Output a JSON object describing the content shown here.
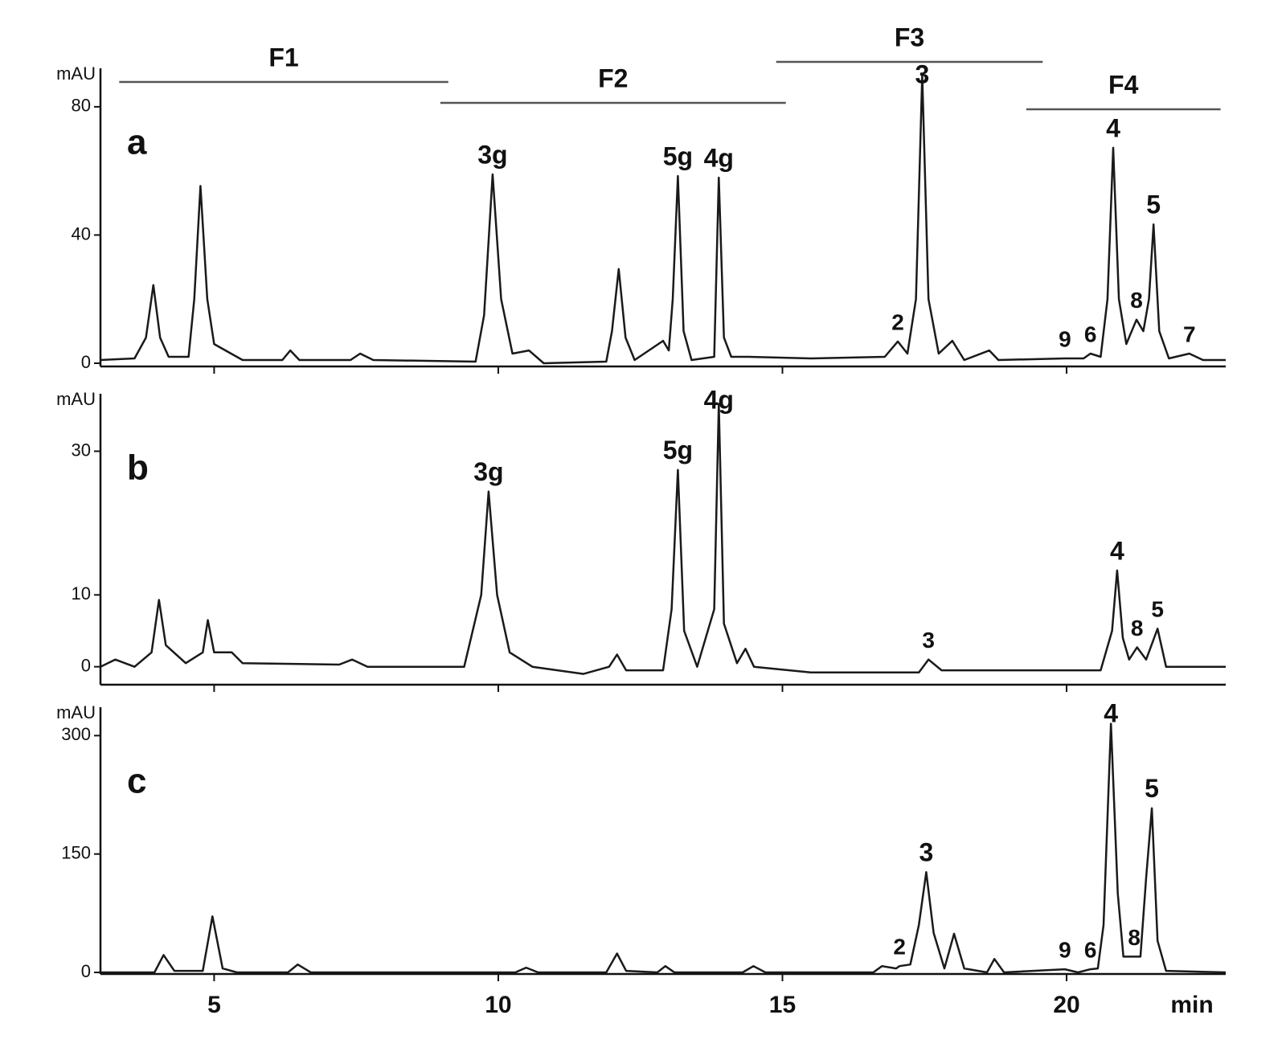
{
  "chart_data": [
    {
      "type": "line",
      "panel_label": "a",
      "y_label": "mAU",
      "color": "#1a1a1a",
      "xlim": [
        3,
        22.8
      ],
      "ylim": [
        -1,
        92
      ],
      "yticks": [
        0,
        40,
        80
      ],
      "xticks": [
        5,
        10,
        15,
        20
      ],
      "fractions": [
        {
          "label": "F1",
          "x": [
            3.33,
            9.12
          ]
        },
        {
          "label": "F2",
          "x": [
            8.98,
            15.06
          ]
        },
        {
          "label": "F3",
          "x": [
            14.89,
            19.58
          ]
        },
        {
          "label": "F4",
          "x": [
            19.29,
            22.71
          ]
        }
      ],
      "x": [
        3.0,
        3.6,
        3.8,
        3.93,
        4.05,
        4.2,
        4.55,
        4.65,
        4.76,
        4.88,
        5.0,
        5.2,
        5.5,
        6.2,
        6.34,
        6.5,
        7.4,
        7.57,
        7.8,
        9.6,
        9.75,
        9.9,
        10.05,
        10.25,
        10.54,
        10.8,
        11.9,
        12.0,
        12.12,
        12.24,
        12.4,
        12.9,
        13.0,
        13.07,
        13.16,
        13.26,
        13.4,
        13.8,
        13.88,
        13.97,
        14.1,
        14.4,
        15.5,
        16.8,
        17.03,
        17.2,
        17.35,
        17.46,
        17.57,
        17.75,
        17.99,
        18.2,
        18.64,
        18.8,
        19.97,
        20.3,
        20.42,
        20.6,
        20.72,
        20.82,
        20.92,
        21.05,
        21.23,
        21.35,
        21.45,
        21.53,
        21.63,
        21.8,
        22.16,
        22.4,
        22.8
      ],
      "values": [
        1,
        1.5,
        8,
        24.4,
        8,
        2,
        2,
        20,
        55.3,
        20,
        6,
        4,
        1,
        1,
        4,
        1,
        1,
        3,
        1,
        0.5,
        15,
        58.9,
        20,
        3,
        4,
        0,
        0.5,
        10,
        29.4,
        8,
        1,
        7,
        4,
        20,
        58.4,
        10,
        1,
        2,
        57.9,
        8,
        2,
        2,
        1.5,
        2,
        6.8,
        3,
        20,
        89.8,
        20,
        3,
        7,
        1,
        4,
        1,
        1.5,
        1.5,
        3,
        2,
        20,
        67.2,
        20,
        6,
        13.6,
        10,
        20,
        43.3,
        10,
        1.5,
        3,
        1,
        1
      ],
      "annotations": [
        {
          "text": "3g",
          "x": 9.9
        },
        {
          "text": "5g",
          "x": 13.16
        },
        {
          "text": "4g",
          "x": 13.88
        },
        {
          "text": "2",
          "x": 17.03
        },
        {
          "text": "3",
          "x": 17.46
        },
        {
          "text": "9",
          "x": 19.97
        },
        {
          "text": "6",
          "x": 20.42
        },
        {
          "text": "4",
          "x": 20.82
        },
        {
          "text": "8",
          "x": 21.23
        },
        {
          "text": "5",
          "x": 21.53
        },
        {
          "text": "7",
          "x": 22.16
        }
      ]
    },
    {
      "type": "line",
      "panel_label": "b",
      "y_label": "mAU",
      "color": "#1a1a1a",
      "xlim": [
        3,
        22.8
      ],
      "ylim": [
        -2.5,
        38
      ],
      "yticks": [
        0,
        10,
        30
      ],
      "xticks": [
        5,
        10,
        15,
        20
      ],
      "x": [
        3.0,
        3.26,
        3.6,
        3.9,
        4.03,
        4.15,
        4.5,
        4.8,
        4.89,
        5.0,
        5.31,
        5.5,
        7.2,
        7.43,
        7.7,
        9.4,
        9.7,
        9.83,
        9.98,
        10.2,
        10.6,
        11.5,
        11.95,
        12.09,
        12.25,
        12.9,
        13.05,
        13.16,
        13.27,
        13.5,
        13.8,
        13.88,
        13.97,
        14.2,
        14.35,
        14.5,
        15.5,
        17.4,
        17.57,
        17.8,
        20.6,
        20.8,
        20.89,
        20.99,
        21.1,
        21.24,
        21.4,
        21.6,
        21.75,
        22.8
      ],
      "values": [
        0,
        1,
        0,
        2,
        9.3,
        3,
        0.5,
        2,
        6.5,
        2,
        2,
        0.5,
        0.3,
        1,
        0,
        0,
        10,
        24.4,
        10,
        2,
        0,
        -1,
        0,
        1.7,
        -0.5,
        -0.5,
        8,
        27.4,
        5,
        0,
        8,
        36.6,
        6,
        0.5,
        2.5,
        0,
        -0.8,
        -0.8,
        1,
        -0.5,
        -0.5,
        5,
        13.4,
        4,
        1,
        2.7,
        1,
        5.3,
        0,
        0
      ],
      "annotations": [
        {
          "text": "3g",
          "x": 9.83
        },
        {
          "text": "5g",
          "x": 13.16
        },
        {
          "text": "4g",
          "x": 13.88
        },
        {
          "text": "3",
          "x": 17.57
        },
        {
          "text": "4",
          "x": 20.89
        },
        {
          "text": "8",
          "x": 21.24
        },
        {
          "text": "5",
          "x": 21.6
        }
      ]
    },
    {
      "type": "line",
      "panel_label": "c",
      "y_label": "mAU",
      "x_label": "min",
      "color": "#1a1a1a",
      "xlim": [
        3,
        22.8
      ],
      "ylim": [
        -2,
        336
      ],
      "yticks": [
        0,
        150,
        300
      ],
      "xticks": [
        5,
        10,
        15,
        20
      ],
      "x": [
        3.0,
        3.95,
        4.11,
        4.3,
        4.8,
        4.97,
        5.15,
        5.4,
        6.3,
        6.47,
        6.7,
        10.3,
        10.49,
        10.7,
        11.9,
        12.09,
        12.25,
        12.8,
        12.94,
        13.1,
        14.3,
        14.49,
        14.7,
        16.6,
        16.75,
        17.0,
        17.06,
        17.25,
        17.4,
        17.53,
        17.66,
        17.85,
        18.02,
        18.2,
        18.6,
        18.73,
        18.9,
        19.97,
        20.2,
        20.42,
        20.55,
        20.65,
        20.78,
        20.9,
        21.0,
        21.19,
        21.3,
        21.4,
        21.5,
        21.6,
        21.75,
        22.8
      ],
      "values": [
        0,
        0,
        22,
        2,
        2,
        71,
        5,
        0,
        0,
        10,
        0,
        0,
        6,
        0,
        0,
        24,
        2,
        0,
        8,
        0,
        0,
        8,
        0,
        0,
        8,
        5,
        8,
        10,
        60,
        127,
        50,
        5,
        49,
        5,
        0,
        17,
        0,
        4,
        0,
        4,
        5,
        60,
        315,
        100,
        20,
        20,
        20,
        120,
        208,
        40,
        2,
        0
      ],
      "annotations": [
        {
          "text": "2",
          "x": 17.06
        },
        {
          "text": "3",
          "x": 17.53
        },
        {
          "text": "9",
          "x": 19.97
        },
        {
          "text": "6",
          "x": 20.42
        },
        {
          "text": "4",
          "x": 20.78
        },
        {
          "text": "8",
          "x": 21.19
        },
        {
          "text": "5",
          "x": 21.5
        }
      ]
    }
  ]
}
